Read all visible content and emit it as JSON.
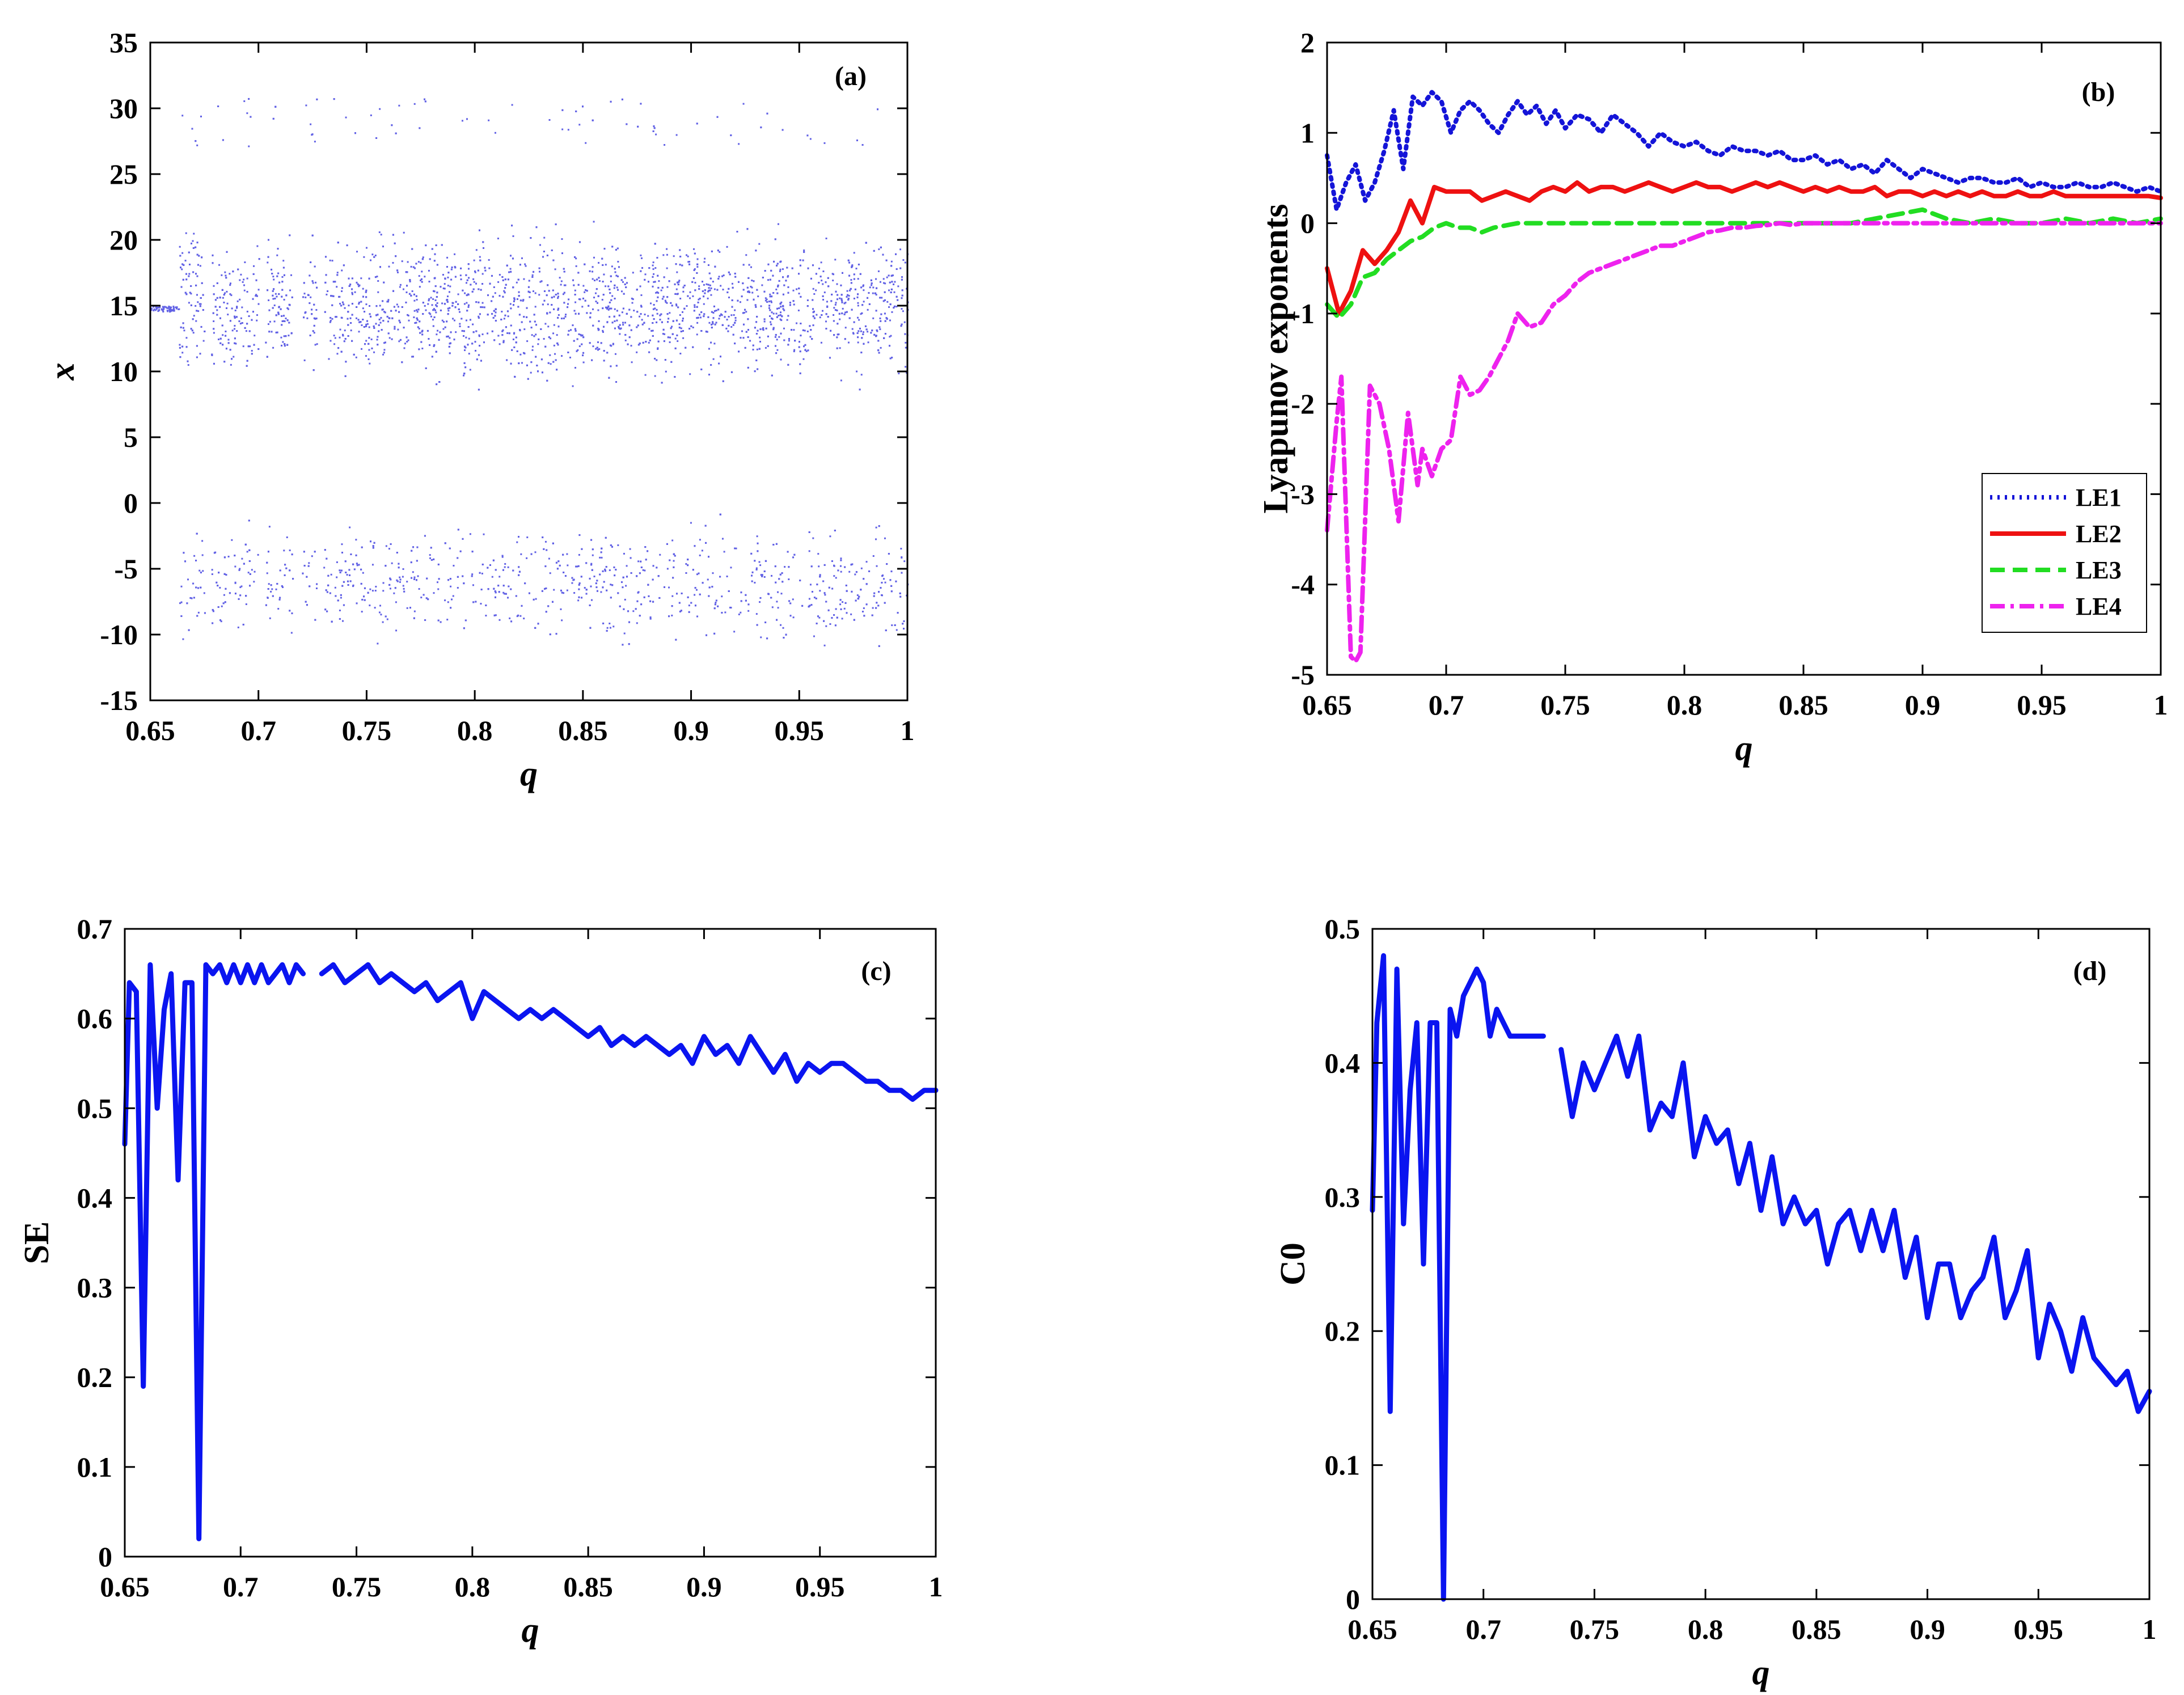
{
  "colors": {
    "bifurcation": "#3a3adf",
    "series_blue": "#0a14f0",
    "le1": "#1414d8",
    "le2": "#ee1111",
    "le3": "#22dd22",
    "le4": "#ee22ee"
  },
  "chart_data": [
    {
      "id": "a",
      "type": "scatter",
      "panel_label": "(a)",
      "xlabel": "q",
      "ylabel": "x",
      "xlim": [
        0.65,
        1
      ],
      "ylim": [
        -15,
        35
      ],
      "xticks": [
        "0.65",
        "0.7",
        "0.75",
        "0.8",
        "0.85",
        "0.9",
        "0.95",
        "1"
      ],
      "yticks": [
        "-15",
        "-10",
        "-5",
        "0",
        "5",
        "10",
        "15",
        "20",
        "25",
        "30",
        "35"
      ],
      "description_values": {
        "periodic_window_q": [
          0.65,
          0.663
        ],
        "periodic_value_x": 14.8,
        "upper_band_x": [
          5.5,
          27.5
        ],
        "lower_band_x": [
          -14.5,
          -0.5
        ],
        "gap_x": [
          0.5,
          5.0
        ]
      },
      "color_key": "bifurcation"
    },
    {
      "id": "b",
      "type": "line",
      "panel_label": "(b)",
      "xlabel": "q",
      "ylabel": "Lyapunov exponents",
      "xlim": [
        0.65,
        1
      ],
      "ylim": [
        -5,
        2
      ],
      "xticks": [
        "0.65",
        "0.7",
        "0.75",
        "0.8",
        "0.85",
        "0.9",
        "0.95",
        "1"
      ],
      "yticks": [
        "-5",
        "-4",
        "-3",
        "-2",
        "-1",
        "0",
        "1",
        "2"
      ],
      "legend_position": "bottom-right",
      "series": [
        {
          "name": "LE1",
          "style": "dotted",
          "color_key": "le1",
          "x": [
            0.65,
            0.654,
            0.658,
            0.662,
            0.666,
            0.67,
            0.674,
            0.678,
            0.682,
            0.686,
            0.69,
            0.694,
            0.698,
            0.702,
            0.706,
            0.71,
            0.714,
            0.718,
            0.722,
            0.726,
            0.73,
            0.734,
            0.738,
            0.742,
            0.746,
            0.75,
            0.755,
            0.76,
            0.765,
            0.77,
            0.775,
            0.78,
            0.785,
            0.79,
            0.795,
            0.8,
            0.805,
            0.81,
            0.815,
            0.82,
            0.825,
            0.83,
            0.835,
            0.84,
            0.845,
            0.85,
            0.855,
            0.86,
            0.865,
            0.87,
            0.875,
            0.88,
            0.885,
            0.89,
            0.895,
            0.9,
            0.905,
            0.91,
            0.915,
            0.92,
            0.925,
            0.93,
            0.935,
            0.94,
            0.945,
            0.95,
            0.955,
            0.96,
            0.965,
            0.97,
            0.975,
            0.98,
            0.985,
            0.99,
            0.995,
            1.0
          ],
          "y": [
            0.75,
            0.15,
            0.45,
            0.65,
            0.25,
            0.45,
            0.8,
            1.25,
            0.6,
            1.4,
            1.3,
            1.45,
            1.35,
            1.0,
            1.25,
            1.35,
            1.25,
            1.1,
            1.0,
            1.2,
            1.35,
            1.2,
            1.3,
            1.1,
            1.25,
            1.05,
            1.2,
            1.15,
            1.0,
            1.2,
            1.1,
            1.0,
            0.85,
            1.0,
            0.9,
            0.85,
            0.9,
            0.8,
            0.75,
            0.85,
            0.8,
            0.8,
            0.75,
            0.8,
            0.7,
            0.7,
            0.75,
            0.65,
            0.7,
            0.6,
            0.65,
            0.55,
            0.7,
            0.6,
            0.5,
            0.6,
            0.55,
            0.5,
            0.45,
            0.5,
            0.5,
            0.45,
            0.45,
            0.5,
            0.4,
            0.45,
            0.4,
            0.4,
            0.45,
            0.4,
            0.4,
            0.45,
            0.4,
            0.35,
            0.4,
            0.35
          ]
        },
        {
          "name": "LE2",
          "style": "solid",
          "color_key": "le2",
          "x": [
            0.65,
            0.655,
            0.66,
            0.665,
            0.67,
            0.675,
            0.68,
            0.685,
            0.69,
            0.695,
            0.7,
            0.705,
            0.71,
            0.715,
            0.72,
            0.725,
            0.73,
            0.735,
            0.74,
            0.745,
            0.75,
            0.755,
            0.76,
            0.765,
            0.77,
            0.775,
            0.78,
            0.785,
            0.79,
            0.795,
            0.8,
            0.805,
            0.81,
            0.815,
            0.82,
            0.825,
            0.83,
            0.835,
            0.84,
            0.845,
            0.85,
            0.855,
            0.86,
            0.865,
            0.87,
            0.875,
            0.88,
            0.885,
            0.89,
            0.895,
            0.9,
            0.905,
            0.91,
            0.915,
            0.92,
            0.925,
            0.93,
            0.935,
            0.94,
            0.945,
            0.95,
            0.955,
            0.96,
            0.965,
            0.97,
            0.975,
            0.98,
            0.985,
            0.99,
            0.995,
            1.0
          ],
          "y": [
            -0.5,
            -1.0,
            -0.75,
            -0.3,
            -0.45,
            -0.3,
            -0.1,
            0.25,
            0.0,
            0.4,
            0.35,
            0.35,
            0.35,
            0.25,
            0.3,
            0.35,
            0.3,
            0.25,
            0.35,
            0.4,
            0.35,
            0.45,
            0.35,
            0.4,
            0.4,
            0.35,
            0.4,
            0.45,
            0.4,
            0.35,
            0.4,
            0.45,
            0.4,
            0.4,
            0.35,
            0.4,
            0.45,
            0.4,
            0.45,
            0.4,
            0.35,
            0.4,
            0.35,
            0.4,
            0.35,
            0.35,
            0.4,
            0.3,
            0.35,
            0.35,
            0.3,
            0.35,
            0.3,
            0.35,
            0.3,
            0.35,
            0.3,
            0.3,
            0.35,
            0.3,
            0.3,
            0.35,
            0.3,
            0.3,
            0.3,
            0.3,
            0.3,
            0.3,
            0.3,
            0.3,
            0.28
          ]
        },
        {
          "name": "LE3",
          "style": "dashed",
          "color_key": "le3",
          "x": [
            0.65,
            0.655,
            0.66,
            0.665,
            0.67,
            0.675,
            0.68,
            0.685,
            0.69,
            0.695,
            0.7,
            0.705,
            0.71,
            0.715,
            0.72,
            0.73,
            0.74,
            0.75,
            0.76,
            0.77,
            0.78,
            0.79,
            0.8,
            0.81,
            0.82,
            0.83,
            0.84,
            0.85,
            0.86,
            0.87,
            0.88,
            0.89,
            0.9,
            0.91,
            0.92,
            0.93,
            0.94,
            0.95,
            0.96,
            0.97,
            0.98,
            0.99,
            1.0
          ],
          "y": [
            -0.9,
            -1.05,
            -0.9,
            -0.6,
            -0.55,
            -0.4,
            -0.3,
            -0.2,
            -0.15,
            -0.05,
            0.0,
            -0.05,
            -0.05,
            -0.1,
            -0.05,
            0.0,
            0.0,
            0.0,
            0.0,
            0.0,
            0.0,
            0.0,
            0.0,
            0.0,
            0.0,
            0.0,
            0.0,
            0.0,
            0.0,
            0.0,
            0.05,
            0.1,
            0.15,
            0.05,
            0.0,
            0.05,
            0.0,
            0.0,
            0.05,
            0.0,
            0.05,
            0.0,
            0.05
          ]
        },
        {
          "name": "LE4",
          "style": "dashdot",
          "color_key": "le4",
          "x": [
            0.65,
            0.654,
            0.656,
            0.66,
            0.662,
            0.664,
            0.668,
            0.672,
            0.676,
            0.68,
            0.684,
            0.688,
            0.69,
            0.694,
            0.698,
            0.702,
            0.706,
            0.71,
            0.714,
            0.718,
            0.722,
            0.726,
            0.73,
            0.735,
            0.74,
            0.745,
            0.75,
            0.755,
            0.76,
            0.765,
            0.77,
            0.775,
            0.78,
            0.785,
            0.79,
            0.795,
            0.8,
            0.805,
            0.81,
            0.815,
            0.82,
            0.825,
            0.83,
            0.835,
            0.84,
            0.845,
            0.85,
            0.86,
            0.87,
            0.88,
            0.89,
            0.9,
            0.91,
            0.92,
            0.93,
            0.94,
            0.95,
            0.96,
            0.97,
            0.98,
            0.99,
            1.0
          ],
          "y": [
            -3.4,
            -2.2,
            -1.7,
            -4.8,
            -4.85,
            -4.75,
            -1.8,
            -2.0,
            -2.5,
            -3.3,
            -2.1,
            -2.9,
            -2.5,
            -2.8,
            -2.5,
            -2.4,
            -1.7,
            -1.9,
            -1.85,
            -1.7,
            -1.5,
            -1.3,
            -1.0,
            -1.15,
            -1.1,
            -0.9,
            -0.8,
            -0.65,
            -0.55,
            -0.5,
            -0.45,
            -0.4,
            -0.35,
            -0.3,
            -0.25,
            -0.25,
            -0.2,
            -0.15,
            -0.1,
            -0.08,
            -0.05,
            -0.05,
            -0.03,
            -0.02,
            0.0,
            -0.02,
            0.0,
            0.0,
            0.0,
            0.0,
            0.0,
            0.0,
            0.0,
            0.0,
            0.0,
            0.0,
            0.0,
            0.0,
            0.0,
            0.0,
            0.0,
            0.0
          ]
        }
      ]
    },
    {
      "id": "c",
      "type": "line",
      "panel_label": "(c)",
      "xlabel": "q",
      "ylabel": "SE",
      "xlim": [
        0.65,
        1
      ],
      "ylim": [
        0,
        0.7
      ],
      "xticks": [
        "0.65",
        "0.7",
        "0.75",
        "0.8",
        "0.85",
        "0.9",
        "0.95",
        "1"
      ],
      "yticks": [
        "0",
        "0.1",
        "0.2",
        "0.3",
        "0.4",
        "0.5",
        "0.6",
        "0.7"
      ],
      "color_key": "series_blue",
      "segments": [
        {
          "x": [
            0.65,
            0.652,
            0.655,
            0.658,
            0.661,
            0.664,
            0.667,
            0.67,
            0.673,
            0.676,
            0.679,
            0.682,
            0.685,
            0.688,
            0.691,
            0.694,
            0.697,
            0.7,
            0.703,
            0.706,
            0.709,
            0.712,
            0.715,
            0.718,
            0.721,
            0.724,
            0.727
          ],
          "y": [
            0.46,
            0.64,
            0.63,
            0.19,
            0.66,
            0.5,
            0.61,
            0.65,
            0.42,
            0.64,
            0.64,
            0.02,
            0.66,
            0.65,
            0.66,
            0.64,
            0.66,
            0.64,
            0.66,
            0.64,
            0.66,
            0.64,
            0.65,
            0.66,
            0.64,
            0.66,
            0.65
          ]
        },
        {
          "x": [
            0.735,
            0.74,
            0.745,
            0.75,
            0.755,
            0.76,
            0.765,
            0.77,
            0.775,
            0.78,
            0.785,
            0.79,
            0.795,
            0.8,
            0.805,
            0.81,
            0.815,
            0.82,
            0.825,
            0.83,
            0.835,
            0.84,
            0.845,
            0.85,
            0.855,
            0.86,
            0.865,
            0.87,
            0.875,
            0.88,
            0.885,
            0.89,
            0.895,
            0.9,
            0.905,
            0.91,
            0.915,
            0.92,
            0.925,
            0.93,
            0.935,
            0.94,
            0.945,
            0.95,
            0.955,
            0.96,
            0.965,
            0.97,
            0.975,
            0.98,
            0.985,
            0.99,
            0.995,
            1.0
          ],
          "y": [
            0.65,
            0.66,
            0.64,
            0.65,
            0.66,
            0.64,
            0.65,
            0.64,
            0.63,
            0.64,
            0.62,
            0.63,
            0.64,
            0.6,
            0.63,
            0.62,
            0.61,
            0.6,
            0.61,
            0.6,
            0.61,
            0.6,
            0.59,
            0.58,
            0.59,
            0.57,
            0.58,
            0.57,
            0.58,
            0.57,
            0.56,
            0.57,
            0.55,
            0.58,
            0.56,
            0.57,
            0.55,
            0.58,
            0.56,
            0.54,
            0.56,
            0.53,
            0.55,
            0.54,
            0.55,
            0.55,
            0.54,
            0.53,
            0.53,
            0.52,
            0.52,
            0.51,
            0.52,
            0.52
          ]
        }
      ]
    },
    {
      "id": "d",
      "type": "line",
      "panel_label": "(d)",
      "xlabel": "q",
      "ylabel": "C0",
      "xlim": [
        0.65,
        1
      ],
      "ylim": [
        0,
        0.5
      ],
      "xticks": [
        "0.65",
        "0.7",
        "0.75",
        "0.8",
        "0.85",
        "0.9",
        "0.95",
        "1"
      ],
      "yticks": [
        "0",
        "0.1",
        "0.2",
        "0.3",
        "0.4",
        "0.5"
      ],
      "color_key": "series_blue",
      "segments": [
        {
          "x": [
            0.65,
            0.652,
            0.655,
            0.658,
            0.661,
            0.664,
            0.667,
            0.67,
            0.673,
            0.676,
            0.679,
            0.682,
            0.685,
            0.688,
            0.691,
            0.694,
            0.697,
            0.7,
            0.703,
            0.706,
            0.709,
            0.712,
            0.715,
            0.718,
            0.721,
            0.724,
            0.727
          ],
          "y": [
            0.29,
            0.43,
            0.48,
            0.14,
            0.47,
            0.28,
            0.38,
            0.43,
            0.25,
            0.43,
            0.43,
            0.0,
            0.44,
            0.42,
            0.45,
            0.46,
            0.47,
            0.46,
            0.42,
            0.44,
            0.43,
            0.42,
            0.42,
            0.42,
            0.42,
            0.42,
            0.42
          ]
        },
        {
          "x": [
            0.735,
            0.74,
            0.745,
            0.75,
            0.755,
            0.76,
            0.765,
            0.77,
            0.775,
            0.78,
            0.785,
            0.79,
            0.795,
            0.8,
            0.805,
            0.81,
            0.815,
            0.82,
            0.825,
            0.83,
            0.835,
            0.84,
            0.845,
            0.85,
            0.855,
            0.86,
            0.865,
            0.87,
            0.875,
            0.88,
            0.885,
            0.89,
            0.895,
            0.9,
            0.905,
            0.91,
            0.915,
            0.92,
            0.925,
            0.93,
            0.935,
            0.94,
            0.945,
            0.95,
            0.955,
            0.96,
            0.965,
            0.97,
            0.975,
            0.98,
            0.985,
            0.99,
            0.995,
            1.0
          ],
          "y": [
            0.41,
            0.36,
            0.4,
            0.38,
            0.4,
            0.42,
            0.39,
            0.42,
            0.35,
            0.37,
            0.36,
            0.4,
            0.33,
            0.36,
            0.34,
            0.35,
            0.31,
            0.34,
            0.29,
            0.33,
            0.28,
            0.3,
            0.28,
            0.29,
            0.25,
            0.28,
            0.29,
            0.26,
            0.29,
            0.26,
            0.29,
            0.24,
            0.27,
            0.21,
            0.25,
            0.25,
            0.21,
            0.23,
            0.24,
            0.27,
            0.21,
            0.23,
            0.26,
            0.18,
            0.22,
            0.2,
            0.17,
            0.21,
            0.18,
            0.17,
            0.16,
            0.17,
            0.14,
            0.155
          ]
        }
      ]
    }
  ]
}
